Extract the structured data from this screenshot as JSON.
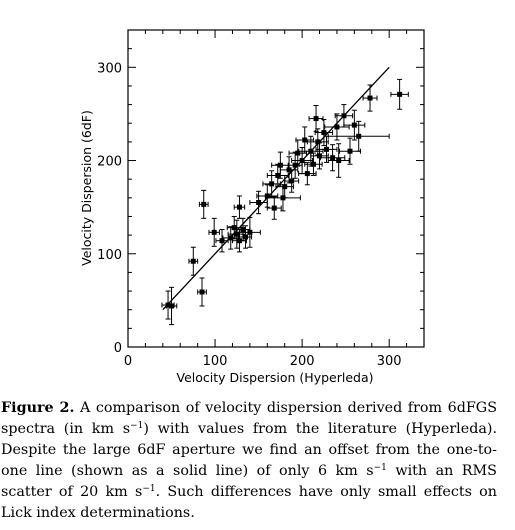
{
  "chart_data": {
    "type": "scatter",
    "title": "",
    "xlabel": "Velocity Dispersion (Hyperleda)",
    "ylabel": "Velocity Dispersion (6dF)",
    "xlim": [
      0,
      340
    ],
    "ylim": [
      0,
      340
    ],
    "xticks": [
      0,
      100,
      200,
      300
    ],
    "yticks": [
      0,
      100,
      200,
      300
    ],
    "grid": false,
    "legend": "none",
    "reference_line": {
      "name": "one-to-one line",
      "x": [
        40,
        300
      ],
      "y": [
        40,
        300
      ]
    },
    "points": [
      {
        "x": 46,
        "y": 45,
        "xerr": 7,
        "yerr": 15
      },
      {
        "x": 50,
        "y": 44,
        "xerr": 6,
        "yerr": 20
      },
      {
        "x": 75,
        "y": 92,
        "xerr": 5,
        "yerr": 15
      },
      {
        "x": 85,
        "y": 59,
        "xerr": 5,
        "yerr": 15
      },
      {
        "x": 87,
        "y": 153,
        "xerr": 5,
        "yerr": 15
      },
      {
        "x": 99,
        "y": 123,
        "xerr": 6,
        "yerr": 15
      },
      {
        "x": 108,
        "y": 114,
        "xerr": 7,
        "yerr": 12
      },
      {
        "x": 118,
        "y": 117,
        "xerr": 9,
        "yerr": 12
      },
      {
        "x": 122,
        "y": 128,
        "xerr": 8,
        "yerr": 12
      },
      {
        "x": 125,
        "y": 121,
        "xerr": 10,
        "yerr": 15
      },
      {
        "x": 128,
        "y": 150,
        "xerr": 6,
        "yerr": 12
      },
      {
        "x": 128,
        "y": 114,
        "xerr": 8,
        "yerr": 12
      },
      {
        "x": 132,
        "y": 126,
        "xerr": 8,
        "yerr": 12
      },
      {
        "x": 135,
        "y": 118,
        "xerr": 7,
        "yerr": 12
      },
      {
        "x": 140,
        "y": 123,
        "xerr": 12,
        "yerr": 16
      },
      {
        "x": 150,
        "y": 155,
        "xerr": 10,
        "yerr": 12
      },
      {
        "x": 160,
        "y": 162,
        "xerr": 12,
        "yerr": 12
      },
      {
        "x": 165,
        "y": 175,
        "xerr": 10,
        "yerr": 14
      },
      {
        "x": 168,
        "y": 149,
        "xerr": 8,
        "yerr": 12
      },
      {
        "x": 172,
        "y": 184,
        "xerr": 12,
        "yerr": 12
      },
      {
        "x": 175,
        "y": 195,
        "xerr": 10,
        "yerr": 14
      },
      {
        "x": 178,
        "y": 160,
        "xerr": 20,
        "yerr": 14
      },
      {
        "x": 180,
        "y": 172,
        "xerr": 10,
        "yerr": 12
      },
      {
        "x": 185,
        "y": 190,
        "xerr": 10,
        "yerr": 14
      },
      {
        "x": 188,
        "y": 178,
        "xerr": 8,
        "yerr": 12
      },
      {
        "x": 192,
        "y": 195,
        "xerr": 8,
        "yerr": 14
      },
      {
        "x": 195,
        "y": 208,
        "xerr": 10,
        "yerr": 14
      },
      {
        "x": 200,
        "y": 200,
        "xerr": 12,
        "yerr": 14
      },
      {
        "x": 203,
        "y": 222,
        "xerr": 10,
        "yerr": 14
      },
      {
        "x": 206,
        "y": 186,
        "xerr": 10,
        "yerr": 12
      },
      {
        "x": 210,
        "y": 210,
        "xerr": 14,
        "yerr": 16
      },
      {
        "x": 213,
        "y": 196,
        "xerr": 10,
        "yerr": 12
      },
      {
        "x": 216,
        "y": 245,
        "xerr": 8,
        "yerr": 14
      },
      {
        "x": 218,
        "y": 220,
        "xerr": 12,
        "yerr": 14
      },
      {
        "x": 220,
        "y": 205,
        "xerr": 10,
        "yerr": 14
      },
      {
        "x": 225,
        "y": 230,
        "xerr": 10,
        "yerr": 14
      },
      {
        "x": 228,
        "y": 212,
        "xerr": 12,
        "yerr": 14
      },
      {
        "x": 235,
        "y": 203,
        "xerr": 14,
        "yerr": 14
      },
      {
        "x": 240,
        "y": 236,
        "xerr": 14,
        "yerr": 14
      },
      {
        "x": 242,
        "y": 200,
        "xerr": 12,
        "yerr": 18
      },
      {
        "x": 248,
        "y": 248,
        "xerr": 10,
        "yerr": 12
      },
      {
        "x": 255,
        "y": 210,
        "xerr": 12,
        "yerr": 14
      },
      {
        "x": 260,
        "y": 238,
        "xerr": 12,
        "yerr": 16
      },
      {
        "x": 265,
        "y": 226,
        "xerr": 35,
        "yerr": 16
      },
      {
        "x": 278,
        "y": 267,
        "xerr": 8,
        "yerr": 14
      },
      {
        "x": 312,
        "y": 271,
        "xerr": 10,
        "yerr": 16
      }
    ]
  },
  "caption": {
    "label": "Figure 2.",
    "text_1": "A comparison of velocity dispersion derived from 6dFGS spectra (in",
    "unit_1": "km s",
    "exp_1": "−1",
    "text_2": ") with values from the literature (Hyperleda). Despite the large 6dF aperture we find an offset from the one-to-one line (shown as a solid line) of only",
    "unit_2": "6 km s",
    "exp_2": "−1",
    "text_3": "with an RMS scatter of",
    "unit_3": "20 km s",
    "exp_3": "−1",
    "text_4": ". Such differences have only small effects on Lick index determinations."
  }
}
